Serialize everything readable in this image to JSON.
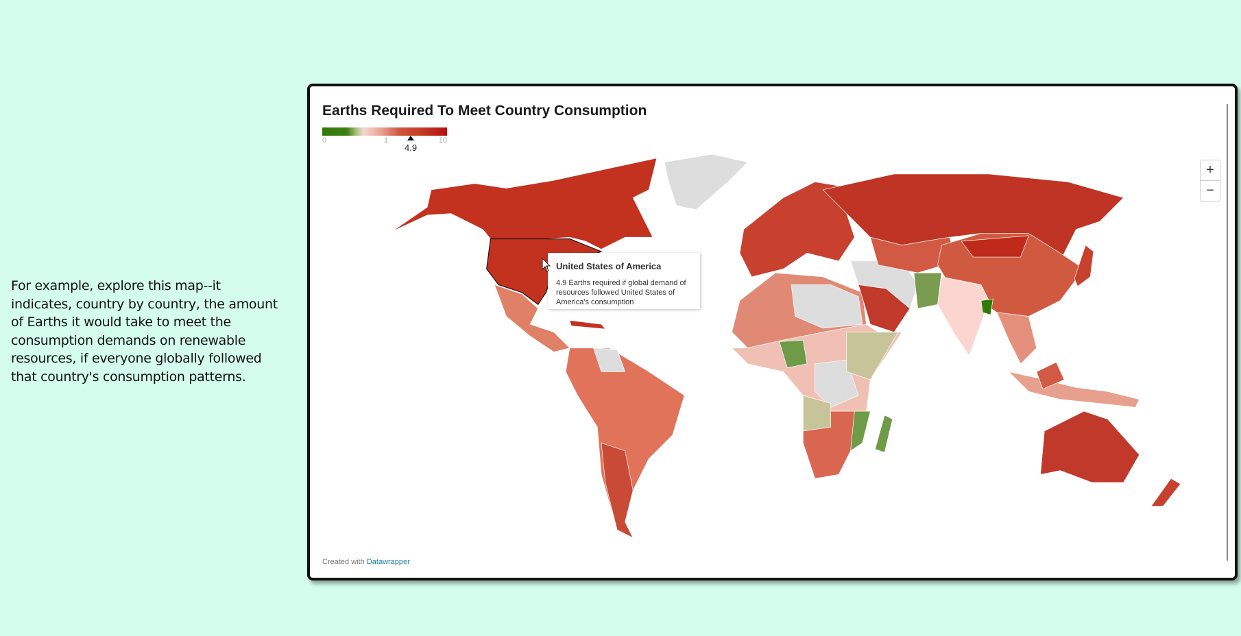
{
  "intro_text": "For example, explore this map--it indicates, country by country, the amount of Earths it would take to meet the consumption demands on renewable resources, if everyone globally followed that country's consumption patterns.",
  "chart": {
    "title": "Earths Required To Meet Country Consumption",
    "legend": {
      "min_label": "0",
      "mid_label": "1",
      "max_label": "10",
      "highlight_value": "4.9",
      "colors": [
        "#2f7a08",
        "#f2d8d0",
        "#b40f0f"
      ]
    },
    "zoom_in_label": "+",
    "zoom_out_label": "−",
    "tooltip": {
      "title": "United States of America",
      "body": "4.9 Earths required if global demand of resources followed United States of America's consumption"
    },
    "footer": {
      "prefix": "Created with",
      "link": "Datawrapper"
    },
    "no_data_color": "#dddddd"
  }
}
